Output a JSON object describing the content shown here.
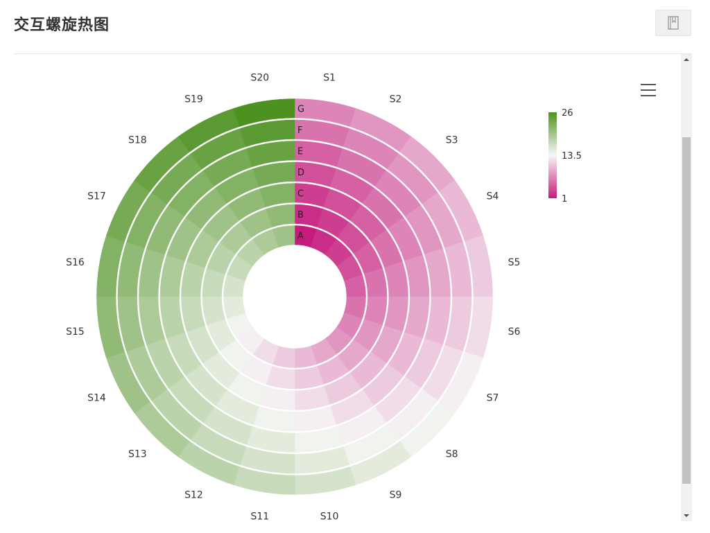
{
  "header": {
    "title": "交互螺旋热图"
  },
  "chart_data": {
    "type": "heatmap",
    "layout": "spiral",
    "sectors": [
      "S1",
      "S2",
      "S3",
      "S4",
      "S5",
      "S6",
      "S7",
      "S8",
      "S9",
      "S10",
      "S11",
      "S12",
      "S13",
      "S14",
      "S15",
      "S16",
      "S17",
      "S18",
      "S19",
      "S20"
    ],
    "rings": [
      "A",
      "B",
      "C",
      "D",
      "E",
      "F",
      "G"
    ],
    "colorscale": {
      "min": 1,
      "mid": 13.5,
      "max": 26,
      "low_color": "#c51b7d",
      "mid_color": "#f7f7f7",
      "high_color": "#4d9221"
    },
    "legend": {
      "ticks": [
        "26",
        "13.5",
        "1"
      ],
      "placement": "top-right"
    },
    "values_rule": "value = sector_index + ring_index (S1..S20 -> 0..19, A..G -> 0..6) + 1 — read via colour scale"
  },
  "icons": {
    "bookmark": "bookmark-icon",
    "menu": "hamburger-menu-icon"
  }
}
